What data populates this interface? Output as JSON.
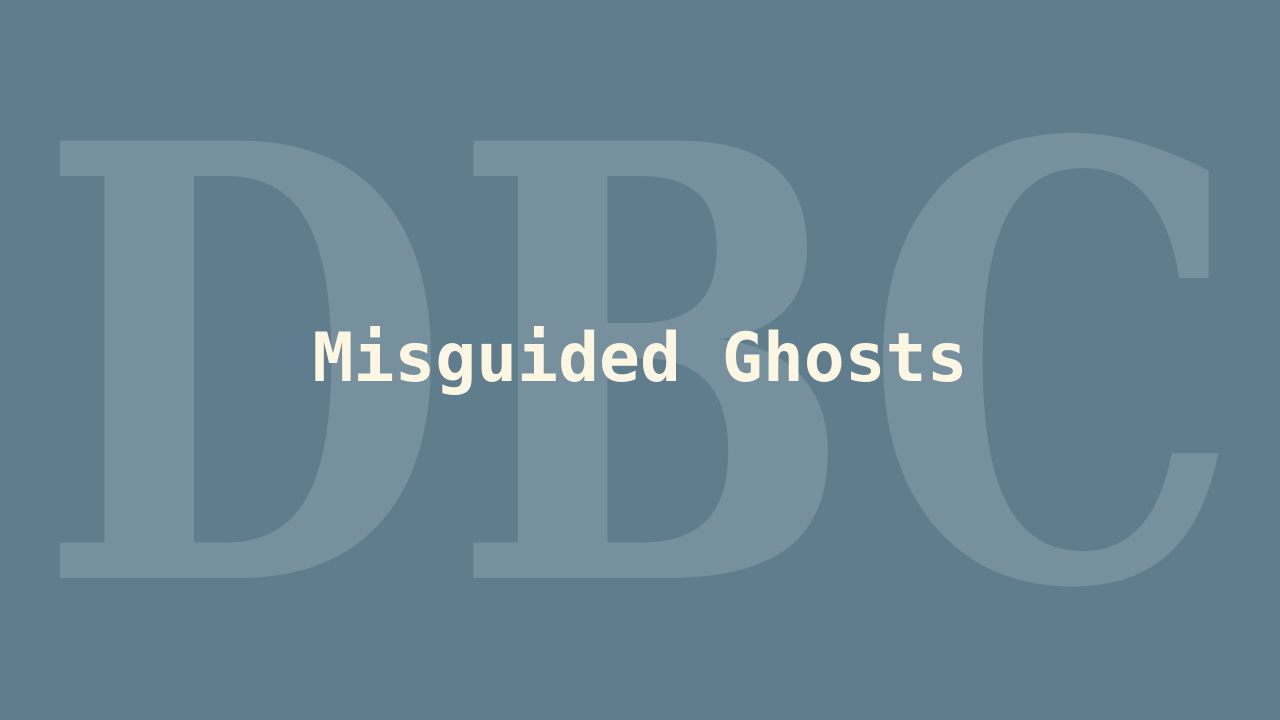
{
  "background_color": "#5f7d8d",
  "watermark": {
    "text": "DBC",
    "color": "#ffffff"
  },
  "title": {
    "text": "Misguided Ghosts",
    "color": "#fdf6e3"
  }
}
